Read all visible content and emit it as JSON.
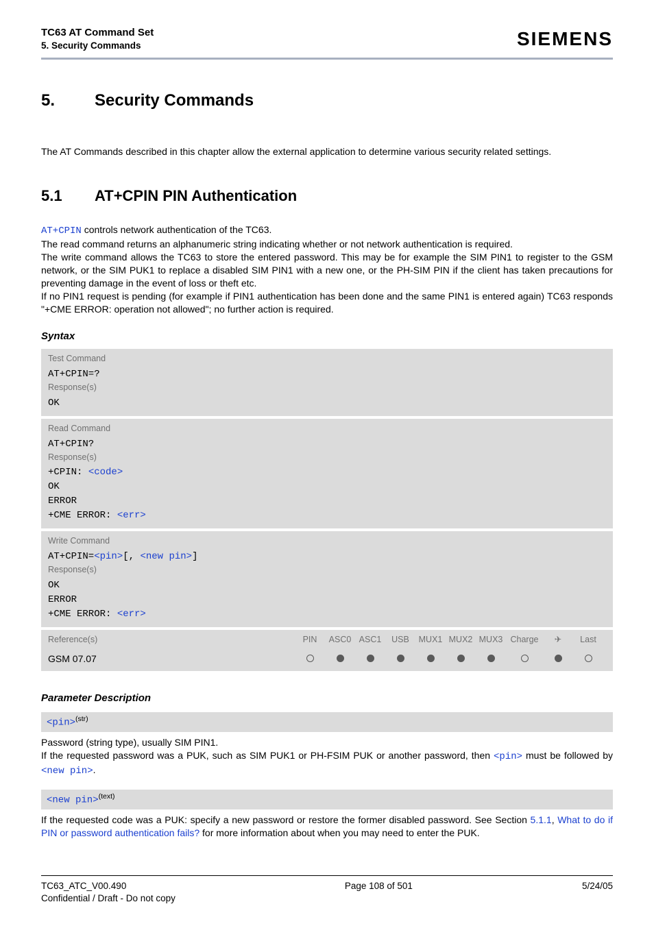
{
  "header": {
    "title": "TC63 AT Command Set",
    "subtitle": "5. Security Commands",
    "brand": "SIEMENS"
  },
  "chapter": {
    "num": "5.",
    "title": "Security Commands"
  },
  "intro": "The AT Commands described in this chapter allow the external application to determine various security related settings.",
  "section": {
    "num": "5.1",
    "title": "AT+CPIN   PIN Authentication"
  },
  "desc": {
    "l1a": "AT+CPIN",
    "l1b": " controls network authentication of the TC63.",
    "l2": "The read command returns an alphanumeric string indicating whether or not network authentication is required.",
    "l3": "The write command allows the TC63 to store the entered password. This may be for example the SIM PIN1 to register to the GSM network, or the SIM PUK1 to replace a disabled SIM PIN1 with a new one, or the PH-SIM PIN if the client has taken precautions for preventing damage in the event of loss or theft etc.",
    "l4": "If no PIN1 request is pending (for example if PIN1 authentication has been done and the same PIN1 is entered again) TC63 responds \"+CME ERROR: operation not allowed\"; no further action is required."
  },
  "syntaxLabel": "Syntax",
  "labels": {
    "test": "Test Command",
    "read": "Read Command",
    "write": "Write Command",
    "resp": "Response(s)",
    "ref": "Reference(s)"
  },
  "test": {
    "cmd": "AT+CPIN=?",
    "resp": "OK"
  },
  "read": {
    "cmd": "AT+CPIN?",
    "r1a": "+CPIN: ",
    "r1b": "<code>",
    "r2": "OK",
    "r3": "ERROR",
    "r4a": "+CME ERROR: ",
    "r4b": "<err>"
  },
  "write": {
    "c1": "AT+CPIN=",
    "c2": "<pin>",
    "c3": "[, ",
    "c4": "<new pin>",
    "c5": "]",
    "r1": "OK",
    "r2": "ERROR",
    "r3a": "+CME ERROR: ",
    "r3b": "<err>"
  },
  "refcols": [
    "PIN",
    "ASC0",
    "ASC1",
    "USB",
    "MUX1",
    "MUX2",
    "MUX3",
    "Charge",
    "✈",
    "Last"
  ],
  "gsm": "GSM 07.07",
  "dots": [
    "empty",
    "filled",
    "filled",
    "filled",
    "filled",
    "filled",
    "filled",
    "empty",
    "filled",
    "empty"
  ],
  "paramHeader": "Parameter Description",
  "p1": {
    "name": "<pin>",
    "sup": "(str)",
    "d1": "Password (string type), usually SIM PIN1.",
    "d2a": "If the requested password was a PUK, such as SIM PUK1 or PH-FSIM PUK or another password, then ",
    "d2b": "<pin>",
    "d2c": " must be followed by ",
    "d2d": "<new pin>",
    "d2e": "."
  },
  "p2": {
    "name": "<new pin>",
    "sup": "(text)",
    "d1a": "If the requested code was a PUK: specify a new password or restore the former disabled password. See Section ",
    "d1b": "5.1.1",
    "d1c": ", ",
    "d1d": "What to do if PIN or password authentication fails?",
    "d1e": " for more information about when you may need to enter the PUK."
  },
  "footer": {
    "l1": "TC63_ATC_V00.490",
    "l2": "Confidential / Draft - Do not copy",
    "c": "Page 108 of 501",
    "r": "5/24/05"
  },
  "colors": {
    "link": "#1a3fcf",
    "block_bg": "#dbdbdb",
    "label_grey": "#707070",
    "rule": "#a8b0c0",
    "dot": "#5a5a5a"
  }
}
